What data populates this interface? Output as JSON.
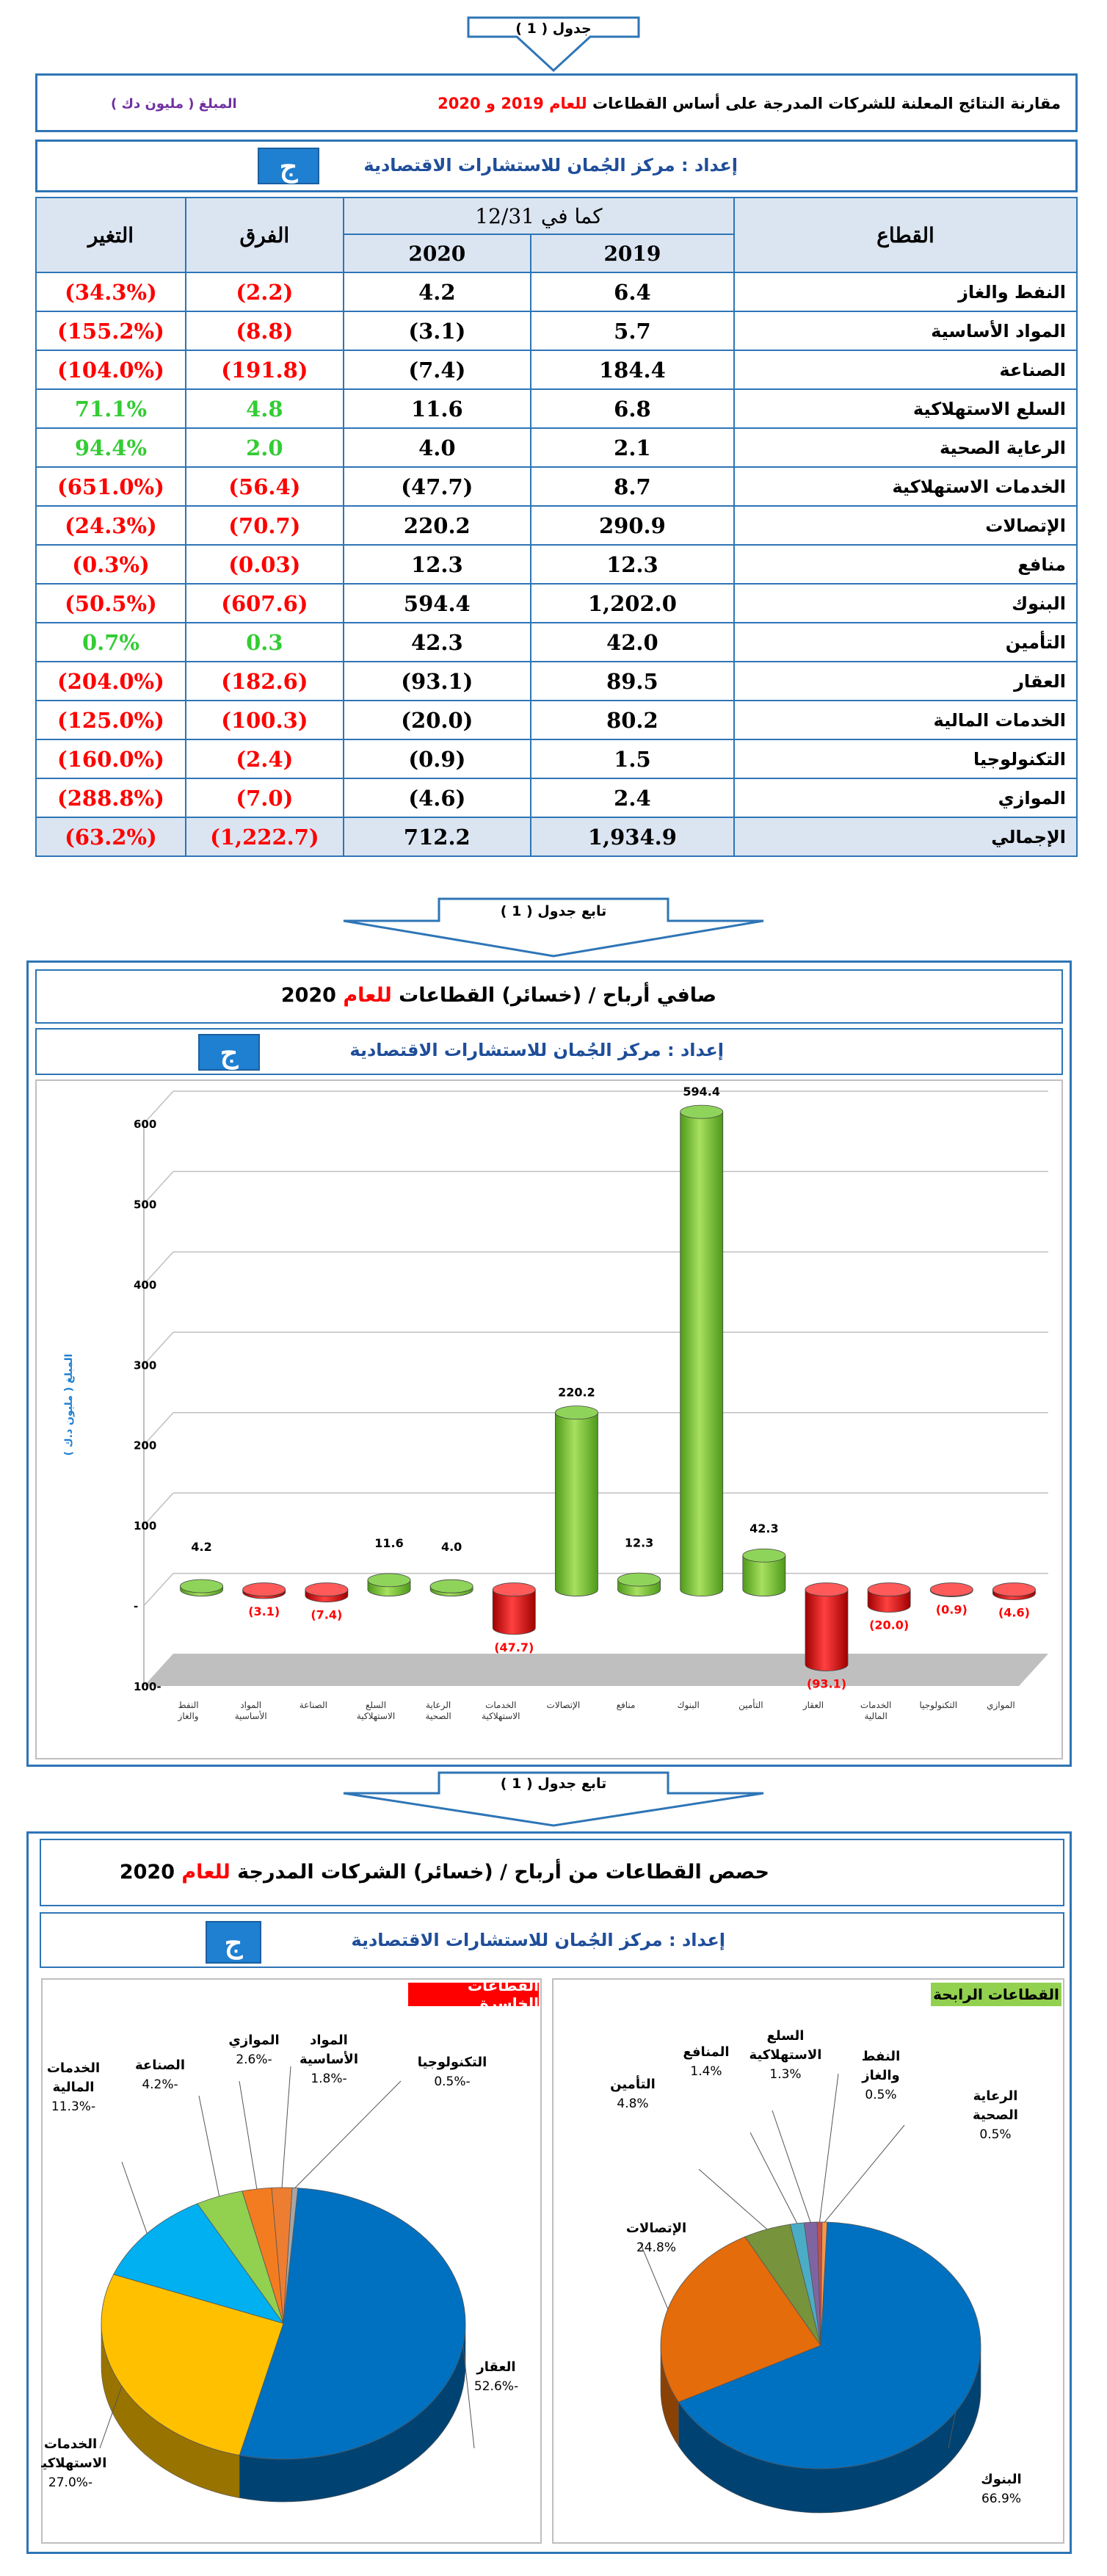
{
  "table_label": "جدول ( 1 )",
  "cont_label": "تابع جدول ( 1 )",
  "header": {
    "title_prefix": "مقارنة النتائج المعلنة للشركات المدرجة على أساس القطاعات",
    "title_red": "للعام 2019 و 2020",
    "amount_label": "المبلغ ( مليون دك )",
    "prepared_label": "إعداد :",
    "prepared_by": "مركز الجُمان للاستشارات الاقتصادية",
    "logo_glyph": "ج"
  },
  "table": {
    "col_sector": "القطاع",
    "col_asof": "كما في 12/31",
    "col_2019": "2019",
    "col_2020": "2020",
    "col_diff": "الفرق",
    "col_change": "التغير",
    "rows": [
      {
        "sector": "النفط والغاز",
        "v2019": "6.4",
        "v2020": "4.2",
        "diff": "(2.2)",
        "change": "(34.3%)",
        "sign": "neg"
      },
      {
        "sector": "المواد الأساسية",
        "v2019": "5.7",
        "v2020": "(3.1)",
        "diff": "(8.8)",
        "change": "(155.2%)",
        "sign": "neg"
      },
      {
        "sector": "الصناعة",
        "v2019": "184.4",
        "v2020": "(7.4)",
        "diff": "(191.8)",
        "change": "(104.0%)",
        "sign": "neg"
      },
      {
        "sector": "السلع الاستهلاكية",
        "v2019": "6.8",
        "v2020": "11.6",
        "diff": "4.8",
        "change": "71.1%",
        "sign": "pos"
      },
      {
        "sector": "الرعاية الصحية",
        "v2019": "2.1",
        "v2020": "4.0",
        "diff": "2.0",
        "change": "94.4%",
        "sign": "pos"
      },
      {
        "sector": "الخدمات الاستهلاكية",
        "v2019": "8.7",
        "v2020": "(47.7)",
        "diff": "(56.4)",
        "change": "(651.0%)",
        "sign": "neg"
      },
      {
        "sector": "الإتصالات",
        "v2019": "290.9",
        "v2020": "220.2",
        "diff": "(70.7)",
        "change": "(24.3%)",
        "sign": "neg"
      },
      {
        "sector": "منافع",
        "v2019": "12.3",
        "v2020": "12.3",
        "diff": "(0.03)",
        "change": "(0.3%)",
        "sign": "neg"
      },
      {
        "sector": "البنوك",
        "v2019": "1,202.0",
        "v2020": "594.4",
        "diff": "(607.6)",
        "change": "(50.5%)",
        "sign": "neg"
      },
      {
        "sector": "التأمين",
        "v2019": "42.0",
        "v2020": "42.3",
        "diff": "0.3",
        "change": "0.7%",
        "sign": "pos"
      },
      {
        "sector": "العقار",
        "v2019": "89.5",
        "v2020": "(93.1)",
        "diff": "(182.6)",
        "change": "(204.0%)",
        "sign": "neg"
      },
      {
        "sector": "الخدمات المالية",
        "v2019": "80.2",
        "v2020": "(20.0)",
        "diff": "(100.3)",
        "change": "(125.0%)",
        "sign": "neg"
      },
      {
        "sector": "التكنولوجيا",
        "v2019": "1.5",
        "v2020": "(0.9)",
        "diff": "(2.4)",
        "change": "(160.0%)",
        "sign": "neg"
      },
      {
        "sector": "الموازي",
        "v2019": "2.4",
        "v2020": "(4.6)",
        "diff": "(7.0)",
        "change": "(288.8%)",
        "sign": "neg"
      }
    ],
    "total": {
      "sector": "الإجمالي",
      "v2019": "1,934.9",
      "v2020": "712.2",
      "diff": "(1,222.7)",
      "change": "(63.2%)"
    }
  },
  "bar_section": {
    "title_prefix": "صافي أرباح / (خسائر) القطاعات",
    "title_red": "للعام",
    "title_year": "2020",
    "ylabel": "المبلغ ( مليون د.ك )"
  },
  "pie_section": {
    "title_prefix": "حصص القطاعات من أرباح / (خسائر) الشركات المدرجة",
    "title_red": "للعام",
    "title_year": "2020",
    "losers_title": "القطاعات الخاسرة",
    "winners_title": "القطاعات الرابحة"
  },
  "colors": {
    "frame": "#2e75b6",
    "red": "#ff0000",
    "green": "#33cc33",
    "bar_green": "#7dc242",
    "bar_red": "#e00000"
  },
  "chart_data": [
    {
      "type": "bar",
      "title": "صافي أرباح / (خسائر) القطاعات للعام 2020",
      "ylabel": "المبلغ ( مليون د.ك )",
      "ylim": [
        -100,
        600
      ],
      "yticks": [
        -100,
        "-",
        100,
        200,
        300,
        400,
        500,
        600
      ],
      "grid": true,
      "categories": [
        "النفط والغاز",
        "المواد الأساسية",
        "الصناعة",
        "السلع الاستهلاكية",
        "الرعاية الصحية",
        "الخدمات الاستهلاكية",
        "الإتصالات",
        "منافع",
        "البنوك",
        "التأمين",
        "العقار",
        "الخدمات المالية",
        "التكنولوجيا",
        "الموازي"
      ],
      "values": [
        4.2,
        -3.1,
        -7.4,
        11.6,
        4.0,
        -47.7,
        220.2,
        12.3,
        594.4,
        42.3,
        -93.1,
        -20.0,
        -0.9,
        -4.6
      ],
      "data_labels": [
        "4.2",
        "(3.1)",
        "(7.4)",
        "11.6",
        "4.0",
        "(47.7)",
        "220.2",
        "12.3",
        "594.4",
        "42.3",
        "(93.1)",
        "(20.0)",
        "(0.9)",
        "(4.6)"
      ]
    },
    {
      "type": "pie",
      "title": "القطاعات الخاسرة",
      "slices": [
        {
          "label": "العقار",
          "value": -52.6,
          "display": "-52.6%",
          "color": "#0070c0"
        },
        {
          "label": "الخدمات الاستهلاكية",
          "value": -27.0,
          "display": "-27.0%",
          "color": "#ffc000"
        },
        {
          "label": "الخدمات المالية",
          "value": -11.3,
          "display": "-11.3%",
          "color": "#00b0f0"
        },
        {
          "label": "الصناعة",
          "value": -4.2,
          "display": "-4.2%",
          "color": "#92d050"
        },
        {
          "label": "الموازي",
          "value": -2.6,
          "display": "-2.6%",
          "color": "#f47c20"
        },
        {
          "label": "المواد الأساسية",
          "value": -1.8,
          "display": "-1.8%",
          "color": "#ed7d31"
        },
        {
          "label": "التكنولوجيا",
          "value": -0.5,
          "display": "-0.5%",
          "color": "#a5a5a5"
        }
      ]
    },
    {
      "type": "pie",
      "title": "القطاعات الرابحة",
      "slices": [
        {
          "label": "البنوك",
          "value": 66.9,
          "display": "66.9%",
          "color": "#0070c0"
        },
        {
          "label": "الإتصالات",
          "value": 24.8,
          "display": "24.8%",
          "color": "#e46c0a"
        },
        {
          "label": "التأمين",
          "value": 4.8,
          "display": "4.8%",
          "color": "#77933c"
        },
        {
          "label": "المنافع",
          "value": 1.4,
          "display": "1.4%",
          "color": "#4bacc6"
        },
        {
          "label": "السلع الاستهلاكية",
          "value": 1.3,
          "display": "1.3%",
          "color": "#8064a2"
        },
        {
          "label": "النفط والغاز",
          "value": 0.5,
          "display": "0.5%",
          "color": "#c0504d"
        },
        {
          "label": "الرعاية الصحية",
          "value": 0.5,
          "display": "0.5%",
          "color": "#f79646"
        }
      ]
    }
  ]
}
